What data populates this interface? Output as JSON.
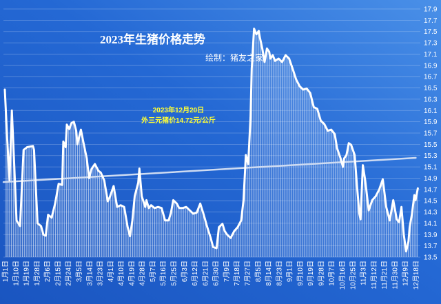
{
  "chart_data": {
    "type": "area",
    "title": "2023年生猪价格走势",
    "subtitle": "绘制：猪友之家",
    "annotation": {
      "date": "2023年12月20日",
      "price": "外三元猪价14.72元/公斤"
    },
    "xlabel": "",
    "ylabel": "",
    "y_axis_side": "right",
    "grid": true,
    "legend": "none",
    "ylim": [
      13.5,
      17.9
    ],
    "y_ticks": [
      "13.5",
      "13.7",
      "13.9",
      "14.1",
      "14.3",
      "14.5",
      "14.7",
      "14.9",
      "15.1",
      "15.3",
      "15.5",
      "15.7",
      "15.9",
      "16.1",
      "16.3",
      "16.5",
      "16.7",
      "16.9",
      "17.1",
      "17.3",
      "17.5",
      "17.7",
      "17.9"
    ],
    "x_ticks": [
      "1月1日",
      "1月10日",
      "1月19日",
      "1月28日",
      "2月6日",
      "2月15日",
      "2月24日",
      "3月5日",
      "3月14日",
      "3月23日",
      "4月1日",
      "4月10日",
      "4月19日",
      "4月28日",
      "5月7日",
      "5月16日",
      "5月25日",
      "6月3日",
      "6月12日",
      "6月21日",
      "6月30日",
      "7月9日",
      "7月18日",
      "7月27日",
      "8月5日",
      "8月14日",
      "8月23日",
      "9月1日",
      "9月10日",
      "9月19日",
      "9月28日",
      "10月7日",
      "10月16日",
      "10月25日",
      "11月3日",
      "11月12日",
      "11月21日",
      "11月30日",
      "12月9日",
      "12月18日"
    ],
    "series": [
      {
        "x": [
          "1月1日",
          "1月3日",
          "1月5日",
          "1月7日",
          "1月9日",
          "1月11日",
          "1月14日",
          "1月17日",
          "1月20日",
          "1月25日",
          "1月26日",
          "1月29日",
          "2月1日",
          "2月3日",
          "2月5日",
          "2月7日",
          "2月10日",
          "2月13日",
          "2月16日",
          "2月19日",
          "2月20日",
          "2月22日",
          "2月23日",
          "2月25日",
          "2月27日",
          "3月1日",
          "3月3日",
          "3月4日",
          "3月7日",
          "3月9日",
          "3月12日",
          "3月14日",
          "3月16日",
          "3月19日",
          "3月22日",
          "3月24日",
          "3月27日",
          "3月30日",
          "4月1日",
          "4月4日",
          "4月7日",
          "4月10日",
          "4月13日",
          "4月16日",
          "4月18日",
          "4月20日",
          "4月22日",
          "4月25日",
          "4月26日",
          "4月28日",
          "5月1日",
          "5月2日",
          "5月4日",
          "5月6日",
          "5月9日",
          "5月12日",
          "5月15日",
          "5月18日",
          "5月21日",
          "5月23日",
          "5月25日",
          "5月28日",
          "5月30日",
          "6月2日",
          "6月5日",
          "6月8日",
          "6月11日",
          "6月14日",
          "6月17日",
          "6月20日",
          "6月23日",
          "6月26日",
          "6月28日",
          "7月1日",
          "7月3日",
          "7月6日",
          "7月8日",
          "7月10日",
          "7月13日",
          "7月16日",
          "7月19日",
          "7月22日",
          "7月24日",
          "7月26日",
          "7月28日",
          "7月30日",
          "7月31日",
          "8月2日",
          "8月4日",
          "8月6日",
          "8月7日",
          "8月9日",
          "8月11日",
          "8月13日",
          "8月15日",
          "8月16日",
          "8月18日",
          "8月20日",
          "8月23日",
          "8月26日",
          "8月29日",
          "9月1日",
          "9月4日",
          "9月7日",
          "9月10日",
          "9月13日",
          "9月16日",
          "9月19日",
          "9月22日",
          "9月25日",
          "9月28日",
          "10月1日",
          "10月4日",
          "10月7日",
          "10月10日",
          "10月12日",
          "10月15日",
          "10月17日",
          "10月18日",
          "10月20日",
          "10月22日",
          "10月24日",
          "10月27日",
          "10月29日",
          "10月31日",
          "11月1日",
          "11月3日",
          "11月5日",
          "11月8日",
          "11月11日",
          "11月14日",
          "11月17日",
          "11月20日",
          "11月23日",
          "11月26日",
          "11月29日",
          "12月2日",
          "12月4日",
          "12月6日",
          "12月8日",
          "12月10日",
          "12月12日",
          "12月13日",
          "12月15日",
          "12月17日",
          "12月18日",
          "12月20日"
        ],
        "y": [
          16.47,
          15.61,
          14.86,
          16.1,
          15.15,
          14.15,
          14.05,
          15.4,
          15.45,
          15.47,
          15.4,
          14.1,
          14.05,
          13.9,
          13.88,
          14.25,
          14.2,
          14.45,
          14.8,
          14.78,
          15.55,
          15.45,
          15.85,
          15.77,
          15.88,
          15.9,
          15.74,
          15.5,
          15.76,
          15.55,
          15.25,
          14.9,
          15.06,
          15.15,
          15.03,
          15.0,
          14.86,
          14.49,
          14.58,
          14.76,
          14.39,
          14.42,
          14.39,
          14.03,
          13.87,
          14.15,
          14.58,
          14.82,
          15.07,
          14.58,
          14.39,
          14.51,
          14.37,
          14.42,
          14.37,
          14.39,
          14.37,
          14.15,
          14.15,
          14.29,
          14.51,
          14.45,
          14.37,
          14.37,
          14.39,
          14.33,
          14.27,
          14.29,
          14.45,
          14.25,
          14.03,
          13.84,
          13.68,
          13.66,
          14.03,
          14.09,
          13.96,
          13.9,
          13.84,
          13.96,
          14.03,
          14.15,
          14.51,
          15.31,
          15.15,
          15.98,
          16.84,
          17.55,
          17.45,
          17.51,
          17.39,
          17.2,
          16.96,
          17.2,
          17.14,
          17.02,
          17.08,
          16.98,
          17.02,
          16.96,
          17.08,
          17.02,
          16.84,
          16.65,
          16.53,
          16.47,
          16.49,
          16.41,
          16.16,
          16.13,
          15.92,
          15.86,
          15.74,
          15.76,
          15.68,
          15.43,
          15.25,
          15.1,
          15.25,
          15.31,
          15.52,
          15.49,
          15.31,
          14.76,
          14.27,
          14.17,
          15.13,
          14.86,
          14.33,
          14.51,
          14.58,
          14.7,
          14.88,
          14.39,
          14.15,
          14.51,
          14.17,
          14.12,
          14.39,
          13.9,
          13.6,
          13.78,
          14.03,
          14.27,
          14.6,
          14.51,
          14.72
        ]
      }
    ],
    "trendline": {
      "x": [
        "1月1日",
        "12月20日"
      ],
      "y": [
        14.83,
        15.26
      ]
    },
    "colors": {
      "background": "#2468d4",
      "background_light": "#4a90e8",
      "background_dark": "#1a55c0",
      "line": "#ffffff",
      "trendline": "#cfdcf2",
      "annotation": "#ffff33"
    }
  }
}
